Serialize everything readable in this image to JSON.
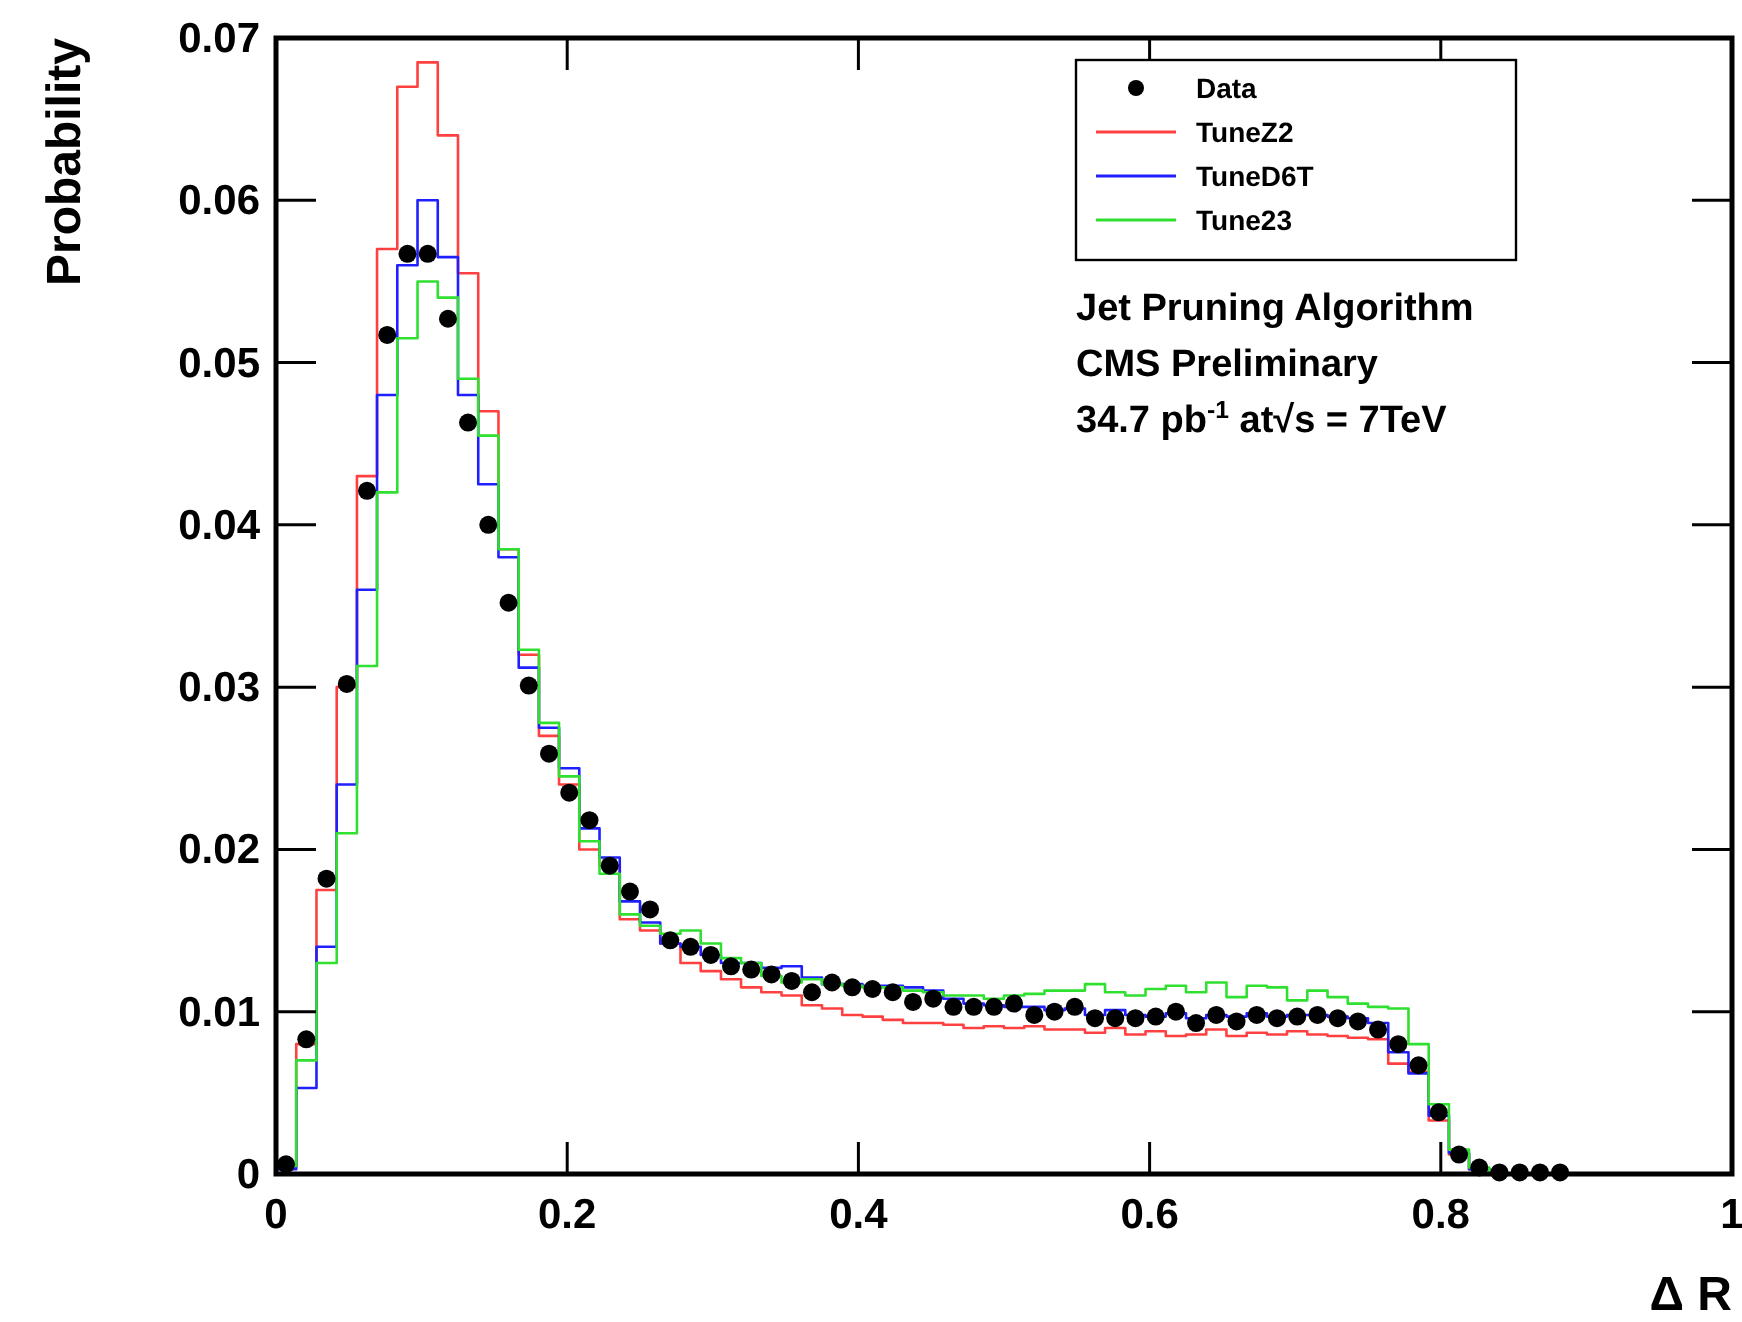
{
  "chart_data": {
    "type": "histogram",
    "xlabel": "Δ R",
    "ylabel": "Probability",
    "xlim": [
      0,
      1
    ],
    "ylim": [
      0,
      0.07
    ],
    "xticks": [
      0,
      0.2,
      0.4,
      0.6,
      0.8,
      1
    ],
    "yticks": [
      0,
      0.01,
      0.02,
      0.03,
      0.04,
      0.05,
      0.06,
      0.07
    ],
    "grid": false,
    "legend": "top right",
    "annotations": [
      "Jet Pruning Algorithm",
      "CMS Preliminary",
      "34.7 pb$^{-1}$ at√s = 7TeV"
    ],
    "bins": [
      0,
      0.0139,
      0.0278,
      0.0417,
      0.0556,
      0.0694,
      0.0833,
      0.0972,
      0.1111,
      0.125,
      0.1389,
      0.1528,
      0.1667,
      0.1806,
      0.1944,
      0.2083,
      0.2222,
      0.2361,
      0.25,
      0.2639,
      0.2778,
      0.2917,
      0.3056,
      0.3194,
      0.3333,
      0.3472,
      0.3611,
      0.375,
      0.3889,
      0.4028,
      0.4167,
      0.4306,
      0.4444,
      0.4583,
      0.4722,
      0.4861,
      0.5,
      0.5139,
      0.5278,
      0.5417,
      0.5556,
      0.5694,
      0.5833,
      0.5972,
      0.6111,
      0.625,
      0.6389,
      0.6528,
      0.6667,
      0.6806,
      0.6944,
      0.7083,
      0.7222,
      0.7361,
      0.75,
      0.7639,
      0.7778,
      0.7917,
      0.8056,
      0.8194,
      0.8333,
      0.8472,
      0.8611,
      0.875,
      0.8889,
      0.9028,
      0.9167,
      0.9306,
      0.9444,
      0.9583,
      0.9722,
      0.9861,
      1
    ],
    "series": [
      {
        "name": "Data",
        "type": "scatter",
        "marker": "circle",
        "color": "#000000",
        "x": [
          0.0069,
          0.0208,
          0.0347,
          0.0486,
          0.0625,
          0.0764,
          0.0903,
          0.1042,
          0.1181,
          0.1319,
          0.1458,
          0.1597,
          0.1736,
          0.1875,
          0.2014,
          0.2153,
          0.2292,
          0.2431,
          0.2569,
          0.2708,
          0.2847,
          0.2986,
          0.3125,
          0.3264,
          0.3403,
          0.3542,
          0.3681,
          0.3819,
          0.3958,
          0.4097,
          0.4236,
          0.4375,
          0.4514,
          0.4653,
          0.4792,
          0.4931,
          0.5069,
          0.5208,
          0.5347,
          0.5486,
          0.5625,
          0.5764,
          0.5903,
          0.6042,
          0.6181,
          0.6319,
          0.6458,
          0.6597,
          0.6736,
          0.6875,
          0.7014,
          0.7153,
          0.7292,
          0.7431,
          0.7569,
          0.7708,
          0.7847,
          0.7986,
          0.8125,
          0.8264,
          0.8403,
          0.8542,
          0.8681,
          0.8819
        ],
        "values": [
          0.0006,
          0.0083,
          0.0182,
          0.0302,
          0.0421,
          0.0517,
          0.0567,
          0.0567,
          0.0527,
          0.0463,
          0.04,
          0.0352,
          0.0301,
          0.0259,
          0.0235,
          0.0218,
          0.019,
          0.0174,
          0.0163,
          0.0144,
          0.014,
          0.0135,
          0.0128,
          0.0126,
          0.0123,
          0.0119,
          0.0112,
          0.0118,
          0.0115,
          0.0114,
          0.0112,
          0.0106,
          0.0108,
          0.0103,
          0.0103,
          0.0103,
          0.0105,
          0.0098,
          0.01,
          0.0103,
          0.0096,
          0.0096,
          0.0096,
          0.0097,
          0.01,
          0.0093,
          0.0098,
          0.0094,
          0.0098,
          0.0096,
          0.0097,
          0.0098,
          0.0096,
          0.0094,
          0.0089,
          0.008,
          0.0067,
          0.0038,
          0.0012,
          0.0004,
          0.0001,
          0.0001,
          0.0001,
          0.0001
        ]
      },
      {
        "name": "TuneZ2",
        "color": "#ff4040",
        "values": [
          0.0005,
          0.008,
          0.0175,
          0.03,
          0.043,
          0.057,
          0.067,
          0.0685,
          0.064,
          0.0555,
          0.047,
          0.0385,
          0.032,
          0.027,
          0.024,
          0.02,
          0.019,
          0.0157,
          0.015,
          0.0142,
          0.013,
          0.0125,
          0.012,
          0.0115,
          0.0112,
          0.011,
          0.0104,
          0.0102,
          0.0098,
          0.0097,
          0.0095,
          0.0093,
          0.0093,
          0.0092,
          0.009,
          0.0091,
          0.009,
          0.0091,
          0.0089,
          0.0089,
          0.0087,
          0.009,
          0.0086,
          0.0088,
          0.0085,
          0.0086,
          0.0089,
          0.0085,
          0.0087,
          0.0086,
          0.0088,
          0.0086,
          0.0085,
          0.0084,
          0.0083,
          0.0068,
          0.0063,
          0.0033,
          0.0012,
          0.0003,
          0,
          0,
          0,
          0,
          0,
          0,
          0,
          0,
          0,
          0,
          0,
          0
        ]
      },
      {
        "name": "TuneD6T",
        "color": "#2020ff",
        "values": [
          0.0003,
          0.0053,
          0.014,
          0.024,
          0.036,
          0.048,
          0.056,
          0.06,
          0.0565,
          0.048,
          0.0425,
          0.038,
          0.0312,
          0.0275,
          0.025,
          0.0213,
          0.0195,
          0.0168,
          0.0155,
          0.0142,
          0.014,
          0.0135,
          0.013,
          0.013,
          0.0127,
          0.0128,
          0.0121,
          0.0117,
          0.0117,
          0.0116,
          0.0116,
          0.0115,
          0.0113,
          0.0108,
          0.0105,
          0.0104,
          0.0103,
          0.0103,
          0.0101,
          0.0102,
          0.0098,
          0.0101,
          0.0098,
          0.0097,
          0.0099,
          0.0096,
          0.0098,
          0.0097,
          0.0099,
          0.0097,
          0.0098,
          0.0098,
          0.0097,
          0.0096,
          0.0093,
          0.0075,
          0.0062,
          0.0036,
          0.0013,
          0.0003,
          0,
          0,
          0,
          0,
          0,
          0,
          0,
          0,
          0,
          0,
          0,
          0
        ]
      },
      {
        "name": "Tune23",
        "color": "#30e030",
        "values": [
          0.0005,
          0.007,
          0.013,
          0.021,
          0.0313,
          0.042,
          0.0515,
          0.055,
          0.054,
          0.049,
          0.0455,
          0.0385,
          0.0323,
          0.0278,
          0.0245,
          0.0205,
          0.0185,
          0.016,
          0.0153,
          0.0148,
          0.015,
          0.0142,
          0.0133,
          0.013,
          0.0122,
          0.0118,
          0.012,
          0.0117,
          0.0116,
          0.0115,
          0.0115,
          0.0113,
          0.0112,
          0.011,
          0.011,
          0.0108,
          0.011,
          0.0111,
          0.0113,
          0.0113,
          0.0117,
          0.0112,
          0.011,
          0.0114,
          0.0116,
          0.0112,
          0.0118,
          0.0109,
          0.0116,
          0.0115,
          0.0107,
          0.0113,
          0.0109,
          0.0105,
          0.0103,
          0.0102,
          0.008,
          0.0043,
          0.0015,
          0.0004,
          0,
          0,
          0,
          0,
          0,
          0,
          0,
          0,
          0,
          0,
          0,
          0
        ]
      }
    ]
  }
}
